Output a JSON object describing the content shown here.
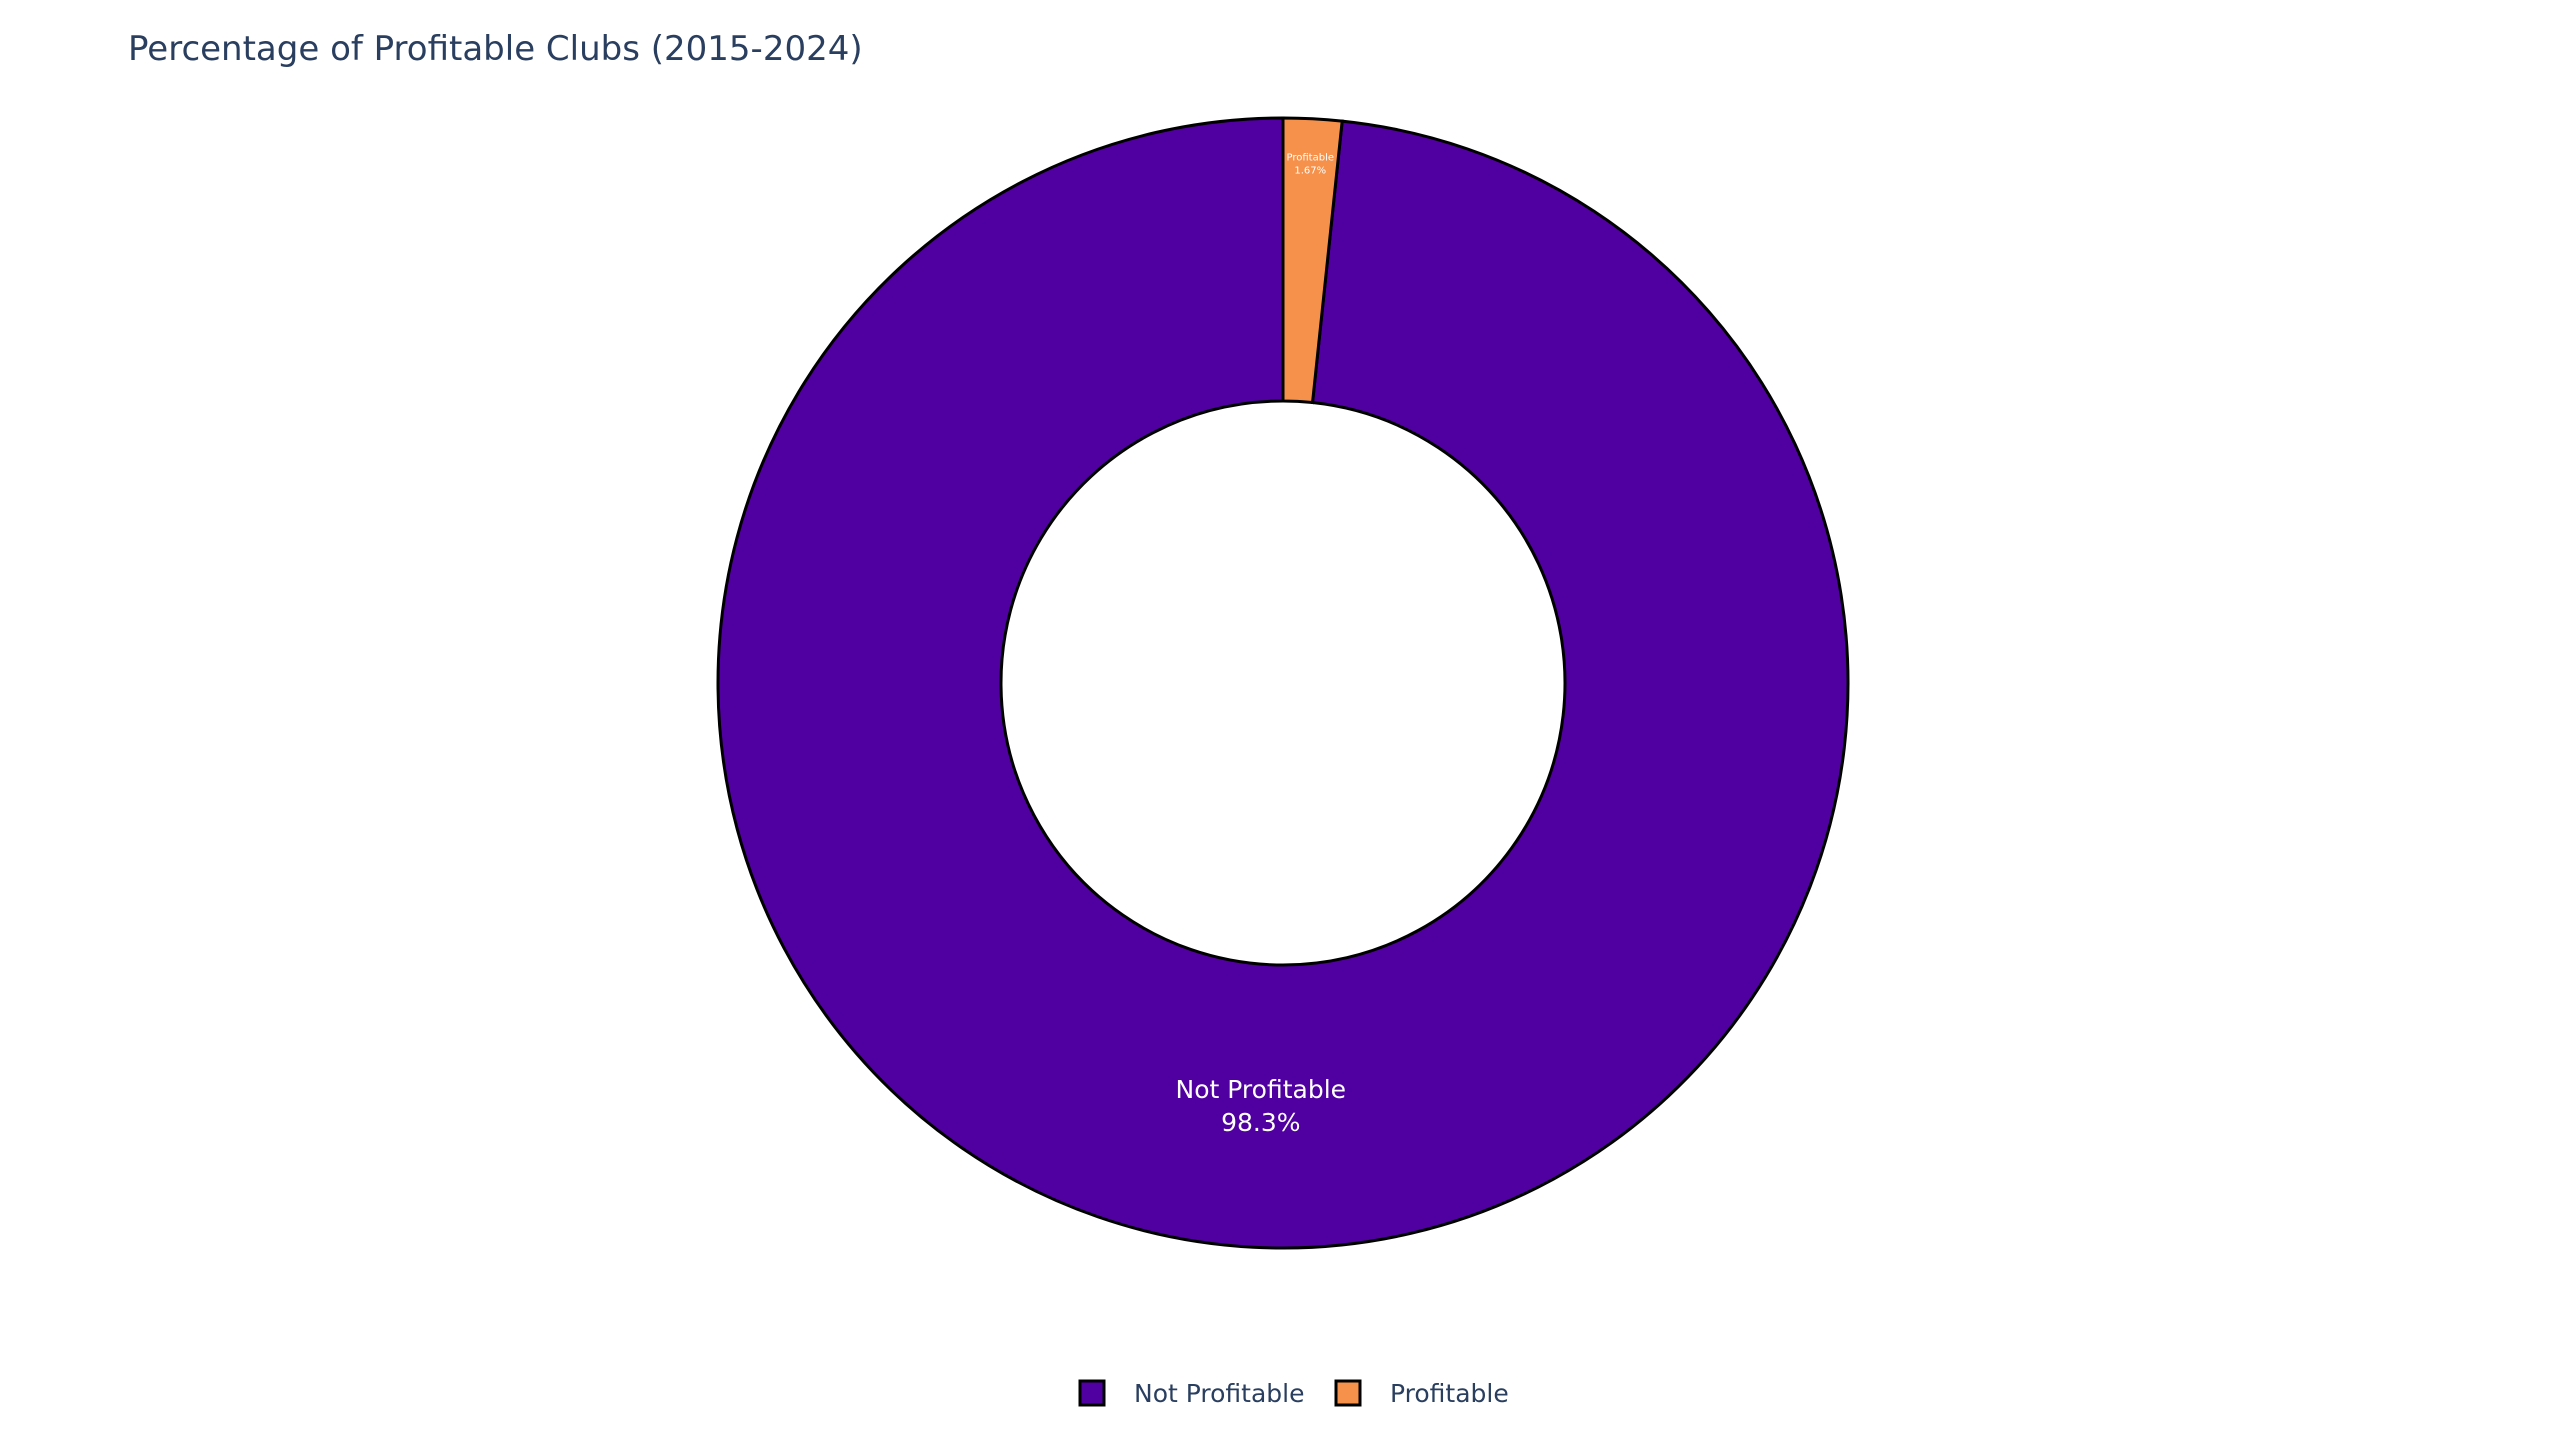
{
  "chart_data": {
    "type": "pie",
    "hole": true,
    "title": "Percentage of Profitable Clubs (2015-2024)",
    "categories": [
      "Not Profitable",
      "Profitable"
    ],
    "values": [
      98.33,
      1.67
    ],
    "percent_labels": [
      "98.3%",
      "1.67%"
    ],
    "colors": [
      "#5000a0",
      "#f5914a"
    ],
    "slice_outline_color": "#000000",
    "text_color": "#ffffff",
    "legend": {
      "placement": "bottom-center",
      "entries": [
        "Not Profitable",
        "Profitable"
      ]
    }
  }
}
